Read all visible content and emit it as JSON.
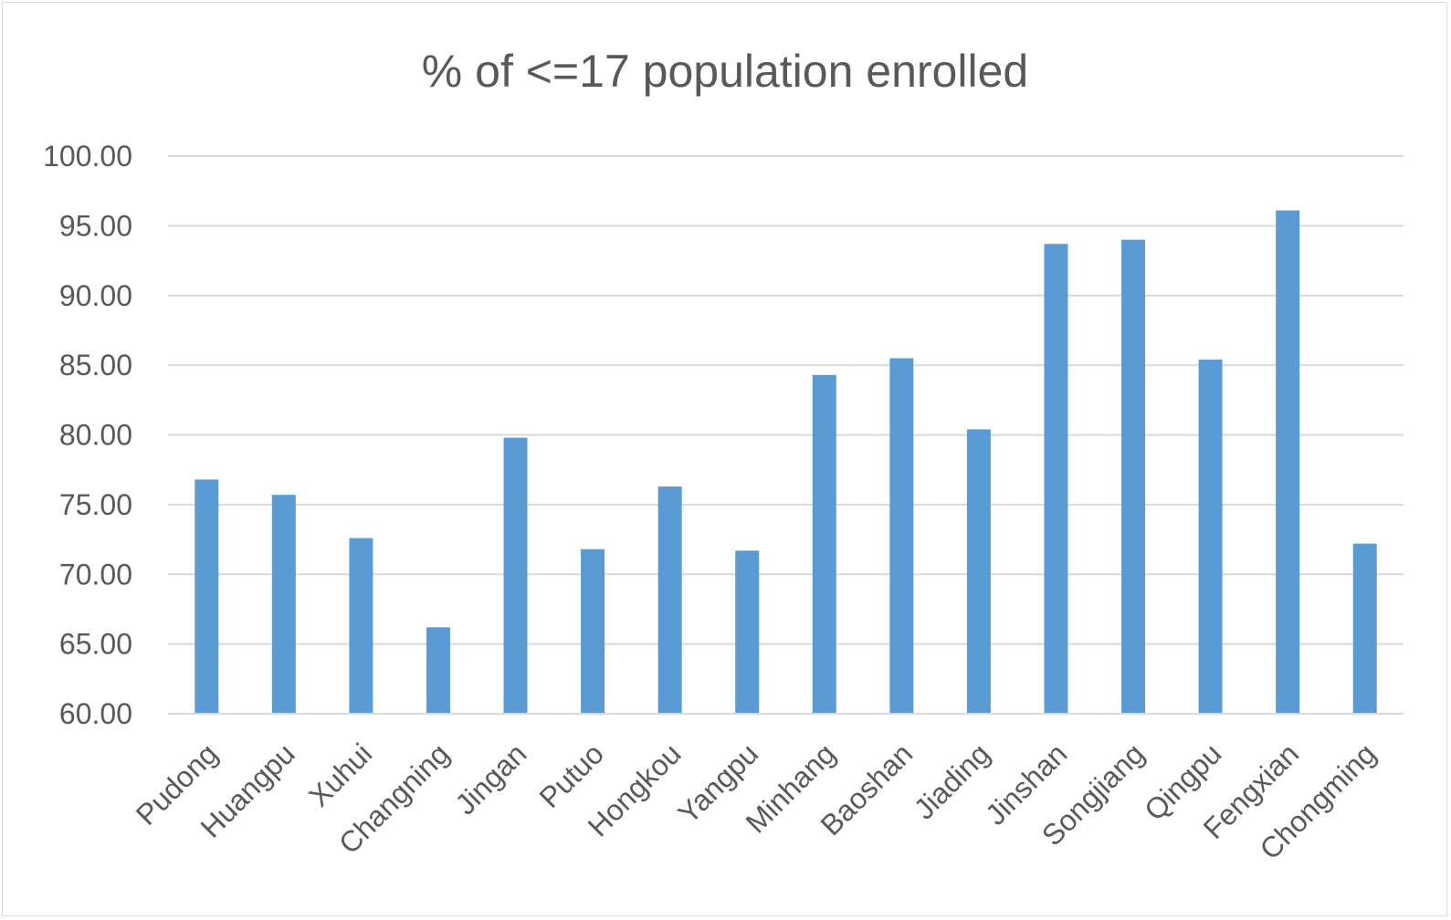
{
  "chart_data": {
    "type": "bar",
    "title": "% of <=17 population enrolled",
    "xlabel": "",
    "ylabel": "",
    "ylim": [
      60,
      100
    ],
    "yticks": [
      "60.00",
      "65.00",
      "70.00",
      "75.00",
      "80.00",
      "85.00",
      "90.00",
      "95.00",
      "100.00"
    ],
    "grid": true,
    "legend": "none",
    "bar_color": "#5b9bd5",
    "categories": [
      "Pudong",
      "Huangpu",
      "Xuhui",
      "Changning",
      "Jingan",
      "Putuo",
      "Hongkou",
      "Yangpu",
      "Minhang",
      "Baoshan",
      "Jiading",
      "Jinshan",
      "Songjiang",
      "Qingpu",
      "Fengxian",
      "Chongming"
    ],
    "values": [
      76.8,
      75.7,
      72.6,
      66.2,
      79.8,
      71.8,
      76.3,
      71.7,
      84.3,
      85.5,
      80.4,
      93.7,
      94.0,
      85.4,
      96.1,
      72.2
    ]
  }
}
